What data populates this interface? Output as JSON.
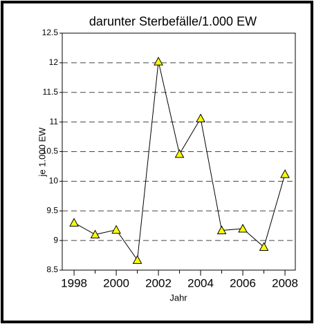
{
  "chart_data": {
    "type": "line",
    "title": "darunter Sterbefälle/1.000 EW",
    "x_label": "Jahr",
    "y_label": "je 1.000 EW",
    "x": [
      1998,
      1999,
      2000,
      2001,
      2002,
      2003,
      2004,
      2005,
      2006,
      2007,
      2008
    ],
    "values": [
      9.3,
      9.1,
      9.18,
      8.67,
      12.02,
      10.46,
      11.06,
      9.17,
      9.2,
      8.89,
      10.12
    ],
    "color": "#000000",
    "marker_color": "#ffff00",
    "xlim": [
      1997.44,
      2008.49
    ],
    "xticks": [
      1998,
      2000,
      2002,
      2004,
      2006,
      2008
    ],
    "xminorticks": [
      1999,
      2001,
      2003,
      2005,
      2007
    ],
    "ylim": [
      8.5,
      12.5
    ],
    "yticks": [
      8.5,
      9,
      9.5,
      10,
      10.5,
      11,
      11.5,
      12,
      12.5
    ],
    "grid": true
  }
}
